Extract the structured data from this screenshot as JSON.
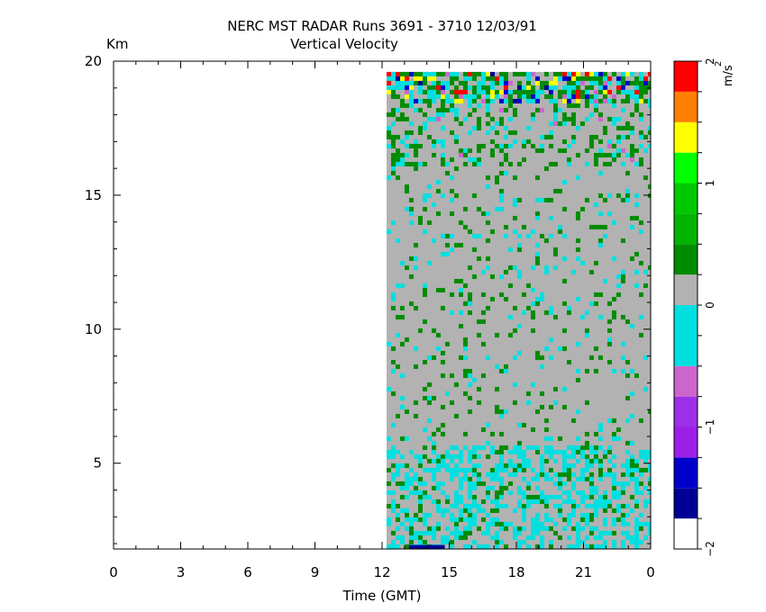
{
  "chart_data": {
    "type": "heatmap",
    "title": "NERC MST RADAR  Runs  3691 -  3710  12/03/91",
    "subtitle": "Vertical Velocity",
    "ylabel": "Km",
    "xlabel": "Time (GMT)",
    "x_range_hours": [
      0,
      24
    ],
    "x_ticks": [
      "0",
      "3",
      "6",
      "9",
      "12",
      "15",
      "18",
      "21",
      "0"
    ],
    "y_range_km": [
      1.8,
      20
    ],
    "y_ticks": [
      "5",
      "10",
      "15",
      "20"
    ],
    "data_extent": {
      "time_start_hours": 12.2,
      "time_end_hours": 24.0,
      "height_min_km": 1.8,
      "height_max_km": 19.6
    },
    "colorbar": {
      "unit_label": "m/s",
      "unit_exponent": "2",
      "range": [
        -2,
        2
      ],
      "tick_labels": [
        "−2",
        "−1",
        "0",
        "1",
        "2"
      ],
      "levels": [
        {
          "from": -2.0,
          "to": -1.75,
          "color": "#ffffff"
        },
        {
          "from": -1.75,
          "to": -1.5,
          "color": "#000096"
        },
        {
          "from": -1.5,
          "to": -1.25,
          "color": "#0000cd"
        },
        {
          "from": -1.25,
          "to": -1.0,
          "color": "#9b1fe8"
        },
        {
          "from": -1.0,
          "to": -0.75,
          "color": "#9b30e6"
        },
        {
          "from": -0.75,
          "to": -0.5,
          "color": "#cc66cc"
        },
        {
          "from": -0.5,
          "to": 0.0,
          "color": "#00e0e0"
        },
        {
          "from": 0.0,
          "to": 0.25,
          "color": "#b2b2b2"
        },
        {
          "from": 0.25,
          "to": 0.5,
          "color": "#008c00"
        },
        {
          "from": 0.5,
          "to": 0.75,
          "color": "#00b400"
        },
        {
          "from": 0.75,
          "to": 1.0,
          "color": "#00c800"
        },
        {
          "from": 1.0,
          "to": 1.25,
          "color": "#00ff00"
        },
        {
          "from": 1.25,
          "to": 1.5,
          "color": "#ffff00"
        },
        {
          "from": 1.5,
          "to": 1.75,
          "color": "#ff7f00"
        },
        {
          "from": 1.75,
          "to": 2.0,
          "color": "#ff0000"
        }
      ]
    },
    "regions": [
      {
        "description": "bottom 1.8-5.7 km",
        "km": [
          1.8,
          5.7
        ],
        "dominant": "#b2b2b2",
        "mix": {
          "#00e0e0": 0.38,
          "#008c00": 0.12
        }
      },
      {
        "description": "mid 5.7-16 km",
        "km": [
          5.7,
          16.0
        ],
        "dominant": "#b2b2b2",
        "mix": {
          "#00e0e0": 0.05,
          "#008c00": 0.07
        }
      },
      {
        "description": "upper 16-18.5 km",
        "km": [
          16.0,
          18.5
        ],
        "dominant": "#b2b2b2",
        "mix": {
          "#00e0e0": 0.12,
          "#008c00": 0.2,
          "#cc66cc": 0.02
        }
      },
      {
        "description": "top 18.5-19.6 km",
        "km": [
          18.5,
          19.6
        ],
        "dominant": "#b2b2b2",
        "mix": {
          "#00e0e0": 0.25,
          "#008c00": 0.25,
          "#ffff00": 0.06,
          "#ff0000": 0.04,
          "#0000cd": 0.05,
          "#cc66cc": 0.05,
          "#000096": 0.03
        }
      }
    ],
    "grid": false,
    "legend": "right colorbar"
  }
}
